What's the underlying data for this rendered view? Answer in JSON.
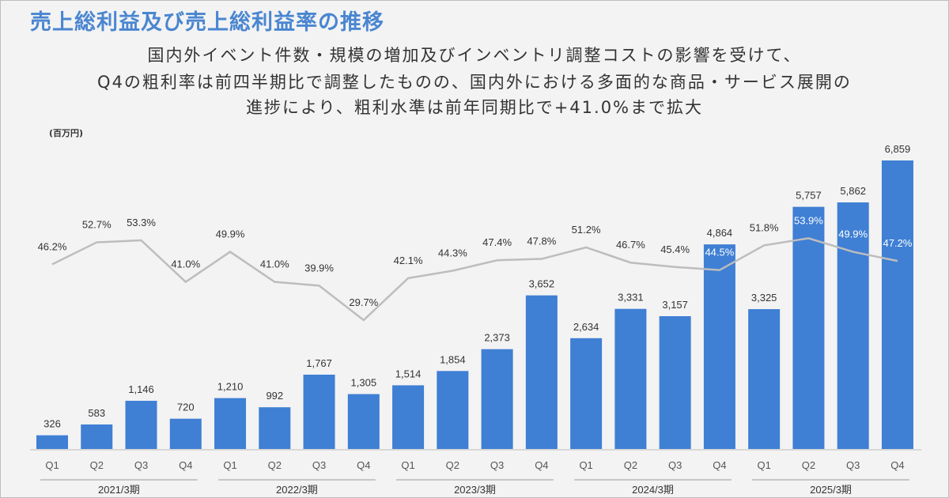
{
  "header": {
    "title": "売上総利益及び売上総利益率の推移",
    "subtitle_lines": [
      "国内外イベント件数・規模の増加及びインベントリ調整コストの影響を受けて、",
      "Q4の粗利率は前四半期比で調整したものの、国内外における多面的な商品・サービス展開の",
      "進捗により、粗利水準は前年同期比で+41.0%まで拡大"
    ],
    "unit": "(百万円)"
  },
  "colors": {
    "bar": "#3f7fd4",
    "line": "#bdbdbd",
    "title": "#4a86d0"
  },
  "chart_data": {
    "type": "bar+line",
    "categories": [
      "Q1",
      "Q2",
      "Q3",
      "Q4",
      "Q1",
      "Q2",
      "Q3",
      "Q4",
      "Q1",
      "Q2",
      "Q3",
      "Q4",
      "Q1",
      "Q2",
      "Q3",
      "Q4",
      "Q1",
      "Q2",
      "Q3",
      "Q4"
    ],
    "groups": [
      "2021/3期",
      "2022/3期",
      "2023/3期",
      "2024/3期",
      "2025/3期"
    ],
    "series": [
      {
        "type": "bar",
        "values": [
          326,
          583,
          1146,
          720,
          1210,
          992,
          1767,
          1305,
          1514,
          1854,
          2373,
          3652,
          2634,
          3331,
          3157,
          4864,
          3325,
          5757,
          5862,
          6859
        ],
        "labels": [
          "326",
          "583",
          "1,146",
          "720",
          "1,210",
          "992",
          "1,767",
          "1,305",
          "1,514",
          "1,854",
          "2,373",
          "3,652",
          "2,634",
          "3,331",
          "3,157",
          "4,864",
          "3,325",
          "5,757",
          "5,862",
          "6,859"
        ]
      },
      {
        "type": "line",
        "values": [
          46.2,
          52.7,
          53.3,
          41.0,
          49.9,
          41.0,
          39.9,
          29.7,
          42.1,
          44.3,
          47.4,
          47.8,
          51.2,
          46.7,
          45.4,
          44.5,
          51.8,
          53.9,
          49.9,
          47.2
        ],
        "labels": [
          "46.2%",
          "52.7%",
          "53.3%",
          "41.0%",
          "49.9%",
          "41.0%",
          "39.9%",
          "29.7%",
          "42.1%",
          "44.3%",
          "47.4%",
          "47.8%",
          "51.2%",
          "46.7%",
          "45.4%",
          "44.5%",
          "51.8%",
          "53.9%",
          "49.9%",
          "47.2%"
        ]
      }
    ]
  }
}
